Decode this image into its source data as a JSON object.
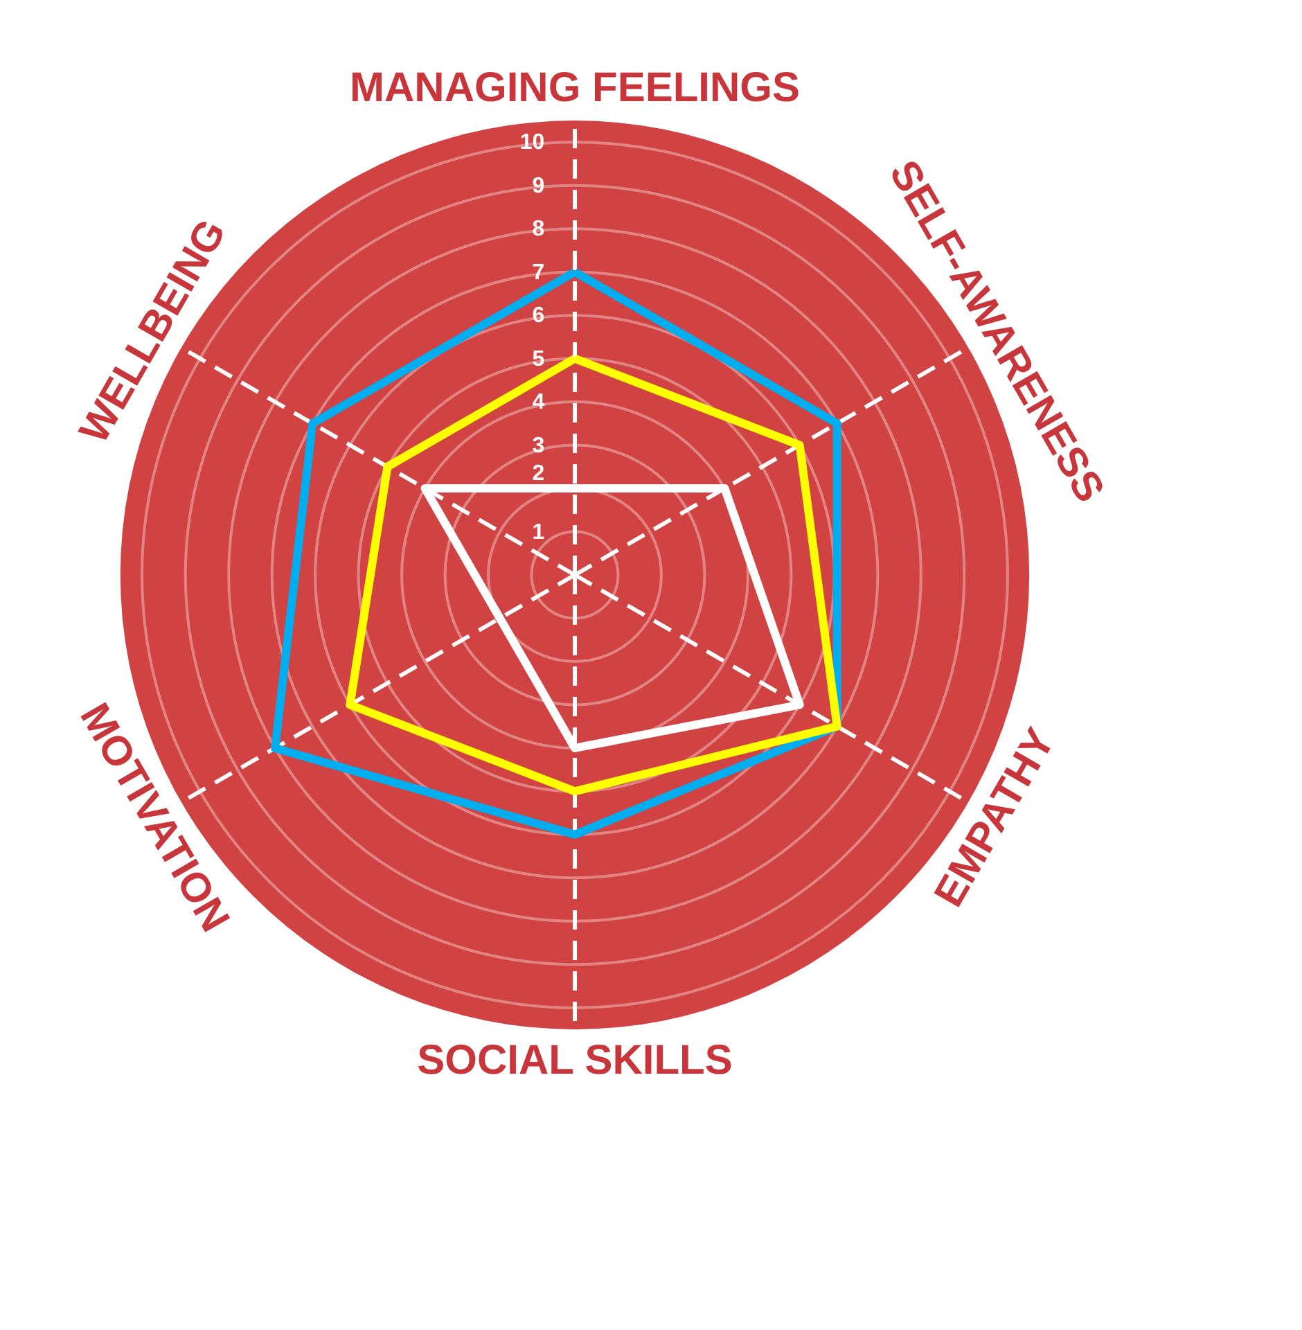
{
  "chart_data": {
    "type": "radar",
    "categories": [
      "MANAGING FEELINGS",
      "SELF-AWARENESS",
      "EMPATHY",
      "SOCIAL SKILLS",
      "MOTIVATION",
      "WELLBEING"
    ],
    "series": [
      {
        "color": "#00aeef",
        "values": [
          7,
          7,
          7,
          6,
          8,
          7
        ]
      },
      {
        "color": "#ffff00",
        "values": [
          5,
          6,
          7,
          5,
          6,
          5
        ]
      },
      {
        "color": "#ffffff",
        "values": [
          2,
          4,
          6,
          4,
          2,
          4
        ]
      }
    ],
    "ylim": [
      0,
      10.5
    ],
    "yticks": [
      1,
      2,
      3,
      4,
      5,
      6,
      7,
      8,
      9,
      10
    ],
    "grid": true,
    "marker": "none",
    "line_style": "solid"
  }
}
